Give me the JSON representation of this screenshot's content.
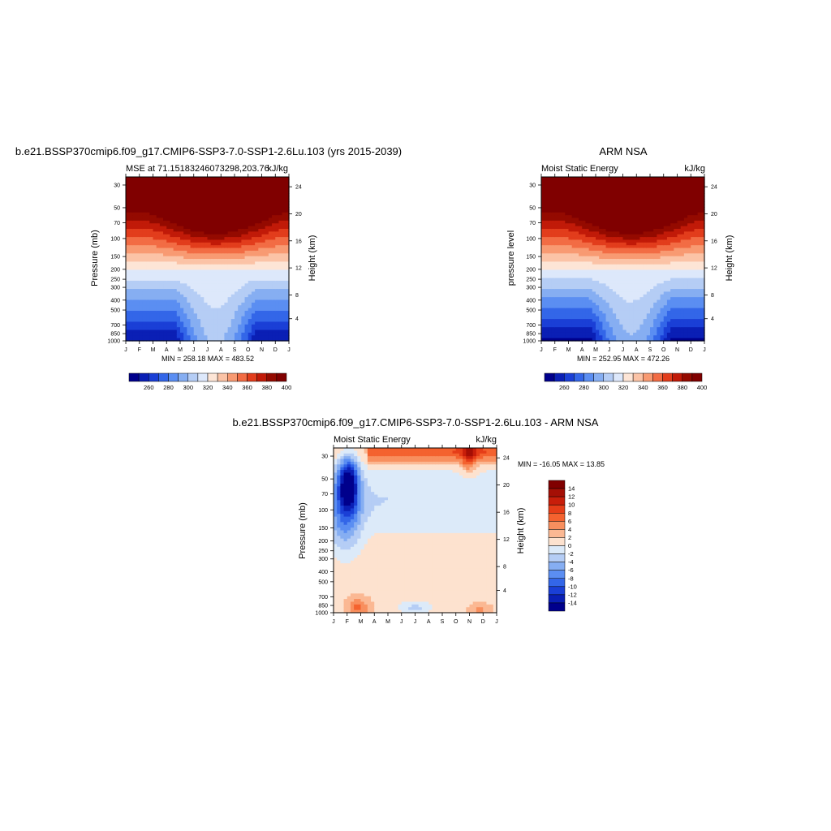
{
  "panels": [
    {
      "id": "model",
      "title": "b.e21.BSSP370cmip6.f09_g17.CMIP6-SSP3-7.0-SSP1-2.6Lu.103 (yrs 2015-2039)",
      "left_string": "MSE at 71.15183246073298,203.76",
      "right_string": "kJ/kg",
      "ylabel_left": "Pressure (mb)",
      "ylabel_right": "Height (km)",
      "minmax": "MIN = 258.18 MAX = 483.52"
    },
    {
      "id": "obs",
      "title": "ARM NSA",
      "left_string": "Moist Static Energy",
      "right_string": "kJ/kg",
      "ylabel_left": "pressure level",
      "ylabel_right": "Height (km)",
      "minmax": "MIN = 252.95 MAX = 472.26"
    },
    {
      "id": "diff",
      "title": "b.e21.BSSP370cmip6.f09_g17.CMIP6-SSP3-7.0-SSP1-2.6Lu.103 - ARM NSA",
      "left_string": "Moist Static Energy",
      "right_string": "kJ/kg",
      "ylabel_left": "Pressure (mb)",
      "ylabel_right": "Height (km)",
      "minmax": "MIN = -16.05 MAX =  13.85"
    }
  ],
  "axes": {
    "months": [
      "J",
      "F",
      "M",
      "A",
      "M",
      "J",
      "J",
      "A",
      "S",
      "O",
      "N",
      "D",
      "J"
    ],
    "pressure_ticks": [
      "30",
      "50",
      "70",
      "100",
      "150",
      "200",
      "250",
      "300",
      "400",
      "500",
      "700",
      "850",
      "1000"
    ],
    "height_ticks_full": [
      "24",
      "20",
      "16",
      "12",
      "8",
      "4"
    ],
    "height_ticks_diff": [
      "24",
      "20",
      "16",
      "12",
      "8",
      "4"
    ]
  },
  "colorbars": {
    "abs_labels": [
      "260",
      "280",
      "300",
      "320",
      "340",
      "360",
      "380",
      "400"
    ],
    "abs_colors": [
      "#00008c",
      "#0a1fb5",
      "#1a3fd6",
      "#3366e8",
      "#5b8ef2",
      "#86aef2",
      "#b5cdf5",
      "#dde8fb",
      "#fde5d6",
      "#fbc3a6",
      "#f89a72",
      "#f26c44",
      "#e23d1c",
      "#c11a08",
      "#940a00",
      "#800000"
    ],
    "diff_labels": [
      "14",
      "12",
      "10",
      "8",
      "6",
      "4",
      "2",
      "0",
      "-2",
      "-4",
      "-6",
      "-8",
      "-10",
      "-12",
      "-14"
    ],
    "diff_colors": [
      "#800000",
      "#a50f05",
      "#c81e0a",
      "#e53d18",
      "#f4622f",
      "#f88f5e",
      "#fbb893",
      "#fde2cf",
      "#dceaf9",
      "#b5cdf5",
      "#86aef2",
      "#5b8ef2",
      "#3366e8",
      "#1a3fd6",
      "#0a1fb5",
      "#00008c"
    ]
  },
  "chart_data": [
    {
      "type": "heatmap",
      "title": "b.e21.BSSP370cmip6.f09_g17.CMIP6-SSP3-7.0-SSP1-2.6Lu.103 (yrs 2015-2039)",
      "subtitle": "MSE at 71.15183246073298,203.76",
      "units": "kJ/kg",
      "x": [
        "J",
        "F",
        "M",
        "A",
        "M",
        "J",
        "J",
        "A",
        "S",
        "O",
        "N",
        "D",
        "J"
      ],
      "y_pressure_mb": [
        30,
        50,
        70,
        100,
        150,
        200,
        250,
        300,
        400,
        500,
        700,
        850,
        1000
      ],
      "xlabel": "",
      "ylabel": "Pressure (mb)",
      "ylabel_right": "Height (km)",
      "min": 258.18,
      "max": 483.52,
      "contour_levels": [
        260,
        270,
        280,
        290,
        300,
        310,
        320,
        330,
        340,
        350,
        360,
        370,
        380,
        390,
        400
      ]
    },
    {
      "type": "heatmap",
      "title": "ARM NSA",
      "subtitle": "Moist Static Energy",
      "units": "kJ/kg",
      "x": [
        "J",
        "F",
        "M",
        "A",
        "M",
        "J",
        "J",
        "A",
        "S",
        "O",
        "N",
        "D",
        "J"
      ],
      "y_pressure_mb": [
        30,
        50,
        70,
        100,
        150,
        200,
        250,
        300,
        400,
        500,
        700,
        850,
        1000
      ],
      "xlabel": "",
      "ylabel": "pressure level",
      "ylabel_right": "Height (km)",
      "min": 252.95,
      "max": 472.26,
      "contour_levels": [
        260,
        270,
        280,
        290,
        300,
        310,
        320,
        330,
        340,
        350,
        360,
        370,
        380,
        390,
        400
      ]
    },
    {
      "type": "heatmap",
      "title": "b.e21.BSSP370cmip6.f09_g17.CMIP6-SSP3-7.0-SSP1-2.6Lu.103 - ARM NSA",
      "subtitle": "Moist Static Energy",
      "units": "kJ/kg",
      "x": [
        "J",
        "F",
        "M",
        "A",
        "M",
        "J",
        "J",
        "A",
        "S",
        "O",
        "N",
        "D",
        "J"
      ],
      "y_pressure_mb": [
        30,
        50,
        70,
        100,
        150,
        200,
        250,
        300,
        400,
        500,
        700,
        850,
        1000
      ],
      "xlabel": "",
      "ylabel": "Pressure (mb)",
      "ylabel_right": "Height (km)",
      "min": -16.05,
      "max": 13.85,
      "contour_levels": [
        -14,
        -12,
        -10,
        -8,
        -6,
        -4,
        -2,
        0,
        2,
        4,
        6,
        8,
        10,
        12,
        14
      ]
    }
  ]
}
